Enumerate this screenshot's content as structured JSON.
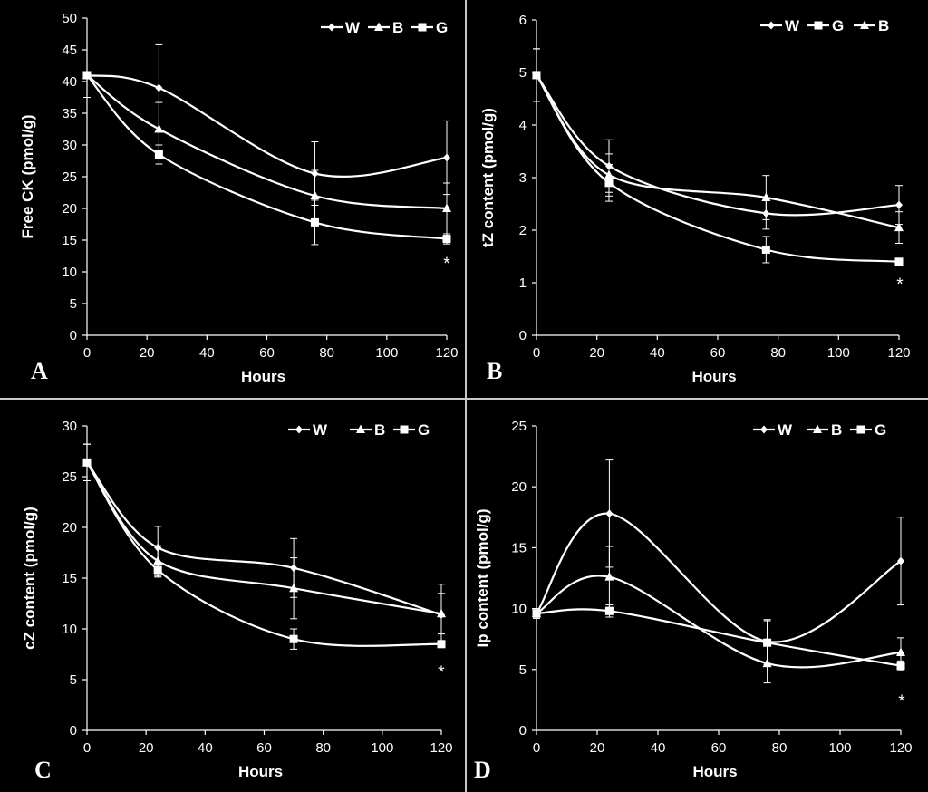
{
  "chart_data": [
    {
      "panel": "A",
      "type": "line",
      "xlabel": "Hours",
      "ylabel": "Free CK (pmol/g)",
      "xlim": [
        0,
        120
      ],
      "xticks": [
        0,
        20,
        40,
        60,
        80,
        100,
        120
      ],
      "ylim": [
        0,
        50
      ],
      "yticks": [
        0,
        5,
        10,
        15,
        20,
        25,
        30,
        35,
        40,
        45,
        50
      ],
      "x": [
        0,
        24,
        76,
        120
      ],
      "legend_order": [
        "W",
        "B",
        "G"
      ],
      "series": [
        {
          "name": "W",
          "marker": "diamond",
          "values": [
            41,
            39,
            25.5,
            28
          ],
          "errors": [
            3.5,
            6.8,
            5.0,
            5.8
          ]
        },
        {
          "name": "B",
          "marker": "triangle",
          "values": [
            41,
            32.5,
            22,
            20
          ],
          "errors": [
            3.5,
            4.2,
            4.0,
            4.0
          ]
        },
        {
          "name": "G",
          "marker": "square",
          "values": [
            41,
            28.5,
            17.8,
            15.2
          ],
          "errors": [
            3.5,
            1.5,
            3.5,
            0.8
          ]
        }
      ],
      "annotation": "*"
    },
    {
      "panel": "B",
      "type": "line",
      "xlabel": "Hours",
      "ylabel": "tZ content (pmol/g)",
      "xlim": [
        0,
        120
      ],
      "xticks": [
        0,
        20,
        40,
        60,
        80,
        100,
        120
      ],
      "ylim": [
        0,
        6
      ],
      "yticks": [
        0,
        1,
        2,
        3,
        4,
        5,
        6
      ],
      "x": [
        0,
        24,
        76,
        120
      ],
      "legend_order": [
        "W",
        "G",
        "B"
      ],
      "series": [
        {
          "name": "W",
          "marker": "diamond",
          "values": [
            4.95,
            3.22,
            2.32,
            2.48
          ],
          "errors": [
            0.5,
            0.5,
            0.3,
            0.37
          ]
        },
        {
          "name": "G",
          "marker": "square",
          "values": [
            4.95,
            2.9,
            1.63,
            1.4
          ],
          "errors": [
            0.5,
            0.35,
            0.25,
            0.05
          ]
        },
        {
          "name": "B",
          "marker": "triangle",
          "values": [
            4.95,
            3.05,
            2.62,
            2.05
          ],
          "errors": [
            0.5,
            0.4,
            0.42,
            0.3
          ]
        }
      ],
      "annotation": "*"
    },
    {
      "panel": "C",
      "type": "line",
      "xlabel": "Hours",
      "ylabel": "cZ content (pmol/g)",
      "xlim": [
        0,
        120
      ],
      "xticks": [
        0,
        20,
        40,
        60,
        80,
        100,
        120
      ],
      "ylim": [
        0,
        30
      ],
      "yticks": [
        0,
        5,
        10,
        15,
        20,
        25,
        30
      ],
      "x": [
        0,
        24,
        70,
        120
      ],
      "legend_order": [
        "W",
        "B",
        "G"
      ],
      "series": [
        {
          "name": "W",
          "marker": "diamond",
          "values": [
            26.4,
            18,
            16,
            11.4
          ],
          "errors": [
            1.8,
            2.1,
            2.9,
            3.0
          ]
        },
        {
          "name": "B",
          "marker": "triangle",
          "values": [
            26.4,
            16.7,
            14,
            11.5
          ],
          "errors": [
            1.8,
            1.5,
            3.0,
            2.0
          ]
        },
        {
          "name": "G",
          "marker": "square",
          "values": [
            26.4,
            15.8,
            9,
            8.5
          ],
          "errors": [
            1.8,
            0.7,
            1.0,
            0.3
          ]
        }
      ],
      "annotation": "*"
    },
    {
      "panel": "D",
      "type": "line",
      "xlabel": "Hours",
      "ylabel": "Ip content (pmol/g)",
      "xlim": [
        0,
        120
      ],
      "xticks": [
        0,
        20,
        40,
        60,
        80,
        100,
        120
      ],
      "ylim": [
        0,
        25
      ],
      "yticks": [
        0,
        5,
        10,
        15,
        20,
        25
      ],
      "x": [
        0,
        24,
        76,
        120
      ],
      "legend_order": [
        "W",
        "B",
        "G"
      ],
      "series": [
        {
          "name": "W",
          "marker": "diamond",
          "values": [
            9.6,
            17.8,
            7.3,
            13.9
          ],
          "errors": [
            0.4,
            4.4,
            1.8,
            3.6
          ]
        },
        {
          "name": "B",
          "marker": "triangle",
          "values": [
            9.6,
            12.6,
            5.5,
            6.4
          ],
          "errors": [
            0.4,
            2.5,
            1.6,
            1.2
          ]
        },
        {
          "name": "G",
          "marker": "square",
          "values": [
            9.6,
            9.8,
            7.2,
            5.3
          ],
          "errors": [
            0.4,
            0.5,
            1.8,
            0.4
          ]
        }
      ],
      "annotation": "*"
    }
  ],
  "colors": {
    "background": "#000000",
    "foreground": "#ffffff",
    "divider": "#c8c8c8"
  }
}
